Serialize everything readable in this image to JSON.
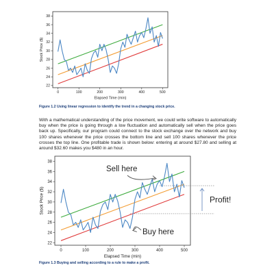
{
  "figure1": {
    "caption": "Figure 1.2 Using linear regression to identify the trend in a changing stock price."
  },
  "paragraph": "With a mathematical understanding of the price movement, we could write software to automatically buy when the price is going through a low fluctuation and automatically sell when the price goes back up. Specifically, our program could connect to the stock exchange over the network and buy 100 shares whenever the price crosses the bottom line and sell 100 shares whenever the price crosses the top line. One profitable trade is shown below: entering at around $27.80 and selling at around $32.60 makes you $480 in an hour.",
  "figure2": {
    "caption": "Figure 1.3 Buying and selling according to a rule to make a profit.",
    "annotations": {
      "sell": "Sell here",
      "buy": "Buy here",
      "profit": "Profit!"
    }
  },
  "colors": {
    "price": "#4a86c4",
    "upper": "#3caa3c",
    "middle": "#f39c32",
    "lower": "#e03a3a",
    "caption": "#1d3f7a"
  },
  "chart_data": [
    {
      "type": "line",
      "xlabel": "Elapsed Time (min)",
      "ylabel": "Stock Price ($)",
      "xlim": [
        -25,
        525
      ],
      "ylim": [
        21.5,
        39
      ],
      "xticks": [
        0,
        100,
        200,
        300,
        400,
        500
      ],
      "yticks": [
        22,
        24,
        26,
        28,
        30,
        32,
        34,
        36,
        38
      ],
      "series": [
        {
          "x": [
            0,
            10,
            20,
            30,
            40,
            50,
            60,
            70,
            80,
            90,
            100,
            110,
            120,
            130,
            140,
            150,
            160,
            170,
            180,
            190,
            200,
            210,
            220,
            230,
            240,
            250,
            260,
            270,
            280,
            290,
            300,
            310,
            320,
            330,
            340,
            350,
            360,
            370,
            380,
            390,
            400,
            410,
            420,
            430,
            440,
            450,
            460,
            470,
            480,
            490,
            500
          ],
          "values": [
            29.8,
            32.5,
            30.0,
            28.0,
            27.5,
            25.5,
            26.0,
            25.0,
            26.5,
            24.5,
            25.2,
            26.0,
            24.0,
            27.0,
            25.5,
            24.8,
            28.2,
            29.5,
            30.0,
            28.5,
            31.5,
            30.0,
            31.5,
            30.2,
            28.0,
            25.0,
            26.5,
            26.0,
            24.8,
            27.0,
            30.5,
            32.0,
            30.8,
            33.8,
            32.5,
            31.5,
            33.0,
            34.5,
            32.0,
            33.5,
            34.2,
            33.0,
            35.0,
            37.6,
            34.0,
            35.5,
            32.0,
            33.5,
            31.0,
            34.2,
            32.8
          ]
        },
        {
          "x": [
            0,
            500
          ],
          "values": [
            27.0,
            36.0
          ]
        },
        {
          "x": [
            0,
            500
          ],
          "values": [
            24.5,
            33.5
          ]
        },
        {
          "x": [
            0,
            500
          ],
          "values": [
            22.4,
            31.5
          ]
        }
      ]
    },
    {
      "type": "line",
      "xlabel": "Elapsed Time (min)",
      "ylabel": "Stock Price ($)",
      "xlim": [
        -25,
        525
      ],
      "ylim": [
        21.5,
        39
      ],
      "xticks": [
        0,
        100,
        200,
        300,
        400,
        500
      ],
      "yticks": [
        22,
        24,
        26,
        28,
        30,
        32,
        34,
        36,
        38
      ],
      "series": [
        {
          "x": [
            0,
            10,
            20,
            30,
            40,
            50,
            60,
            70,
            80,
            90,
            100,
            110,
            120,
            130,
            140,
            150,
            160,
            170,
            180,
            190,
            200,
            210,
            220,
            230,
            240,
            250,
            260,
            270,
            280,
            290,
            300,
            310,
            320,
            330,
            340,
            350,
            360,
            370,
            380,
            390,
            400,
            410,
            420,
            430,
            440,
            450,
            460,
            470,
            480,
            490,
            500
          ],
          "values": [
            29.8,
            32.5,
            30.0,
            28.0,
            27.5,
            25.5,
            26.0,
            25.0,
            26.5,
            24.5,
            25.2,
            26.0,
            24.0,
            27.0,
            25.5,
            24.8,
            28.2,
            29.5,
            30.0,
            28.5,
            31.5,
            30.0,
            31.5,
            30.2,
            28.0,
            25.0,
            26.5,
            26.0,
            24.8,
            27.0,
            30.5,
            32.0,
            30.8,
            33.8,
            32.5,
            31.5,
            33.0,
            34.5,
            32.0,
            33.5,
            34.2,
            33.0,
            35.0,
            37.6,
            34.0,
            35.5,
            32.0,
            33.5,
            31.0,
            34.2,
            32.8
          ]
        },
        {
          "x": [
            0,
            500
          ],
          "values": [
            27.0,
            36.0
          ]
        },
        {
          "x": [
            0,
            500
          ],
          "values": [
            24.5,
            33.5
          ]
        },
        {
          "x": [
            0,
            500
          ],
          "values": [
            22.4,
            31.5
          ]
        }
      ],
      "reference_prices": [
        33.2,
        27.7
      ]
    }
  ]
}
